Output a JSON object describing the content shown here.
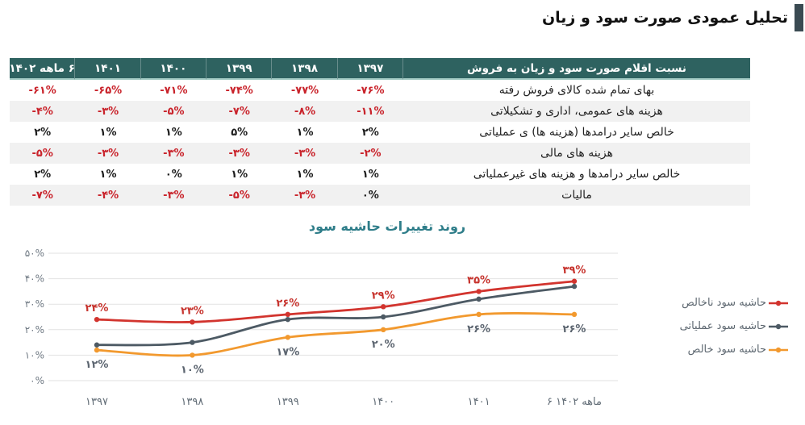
{
  "page": {
    "title": "تحلیل عمودی صورت سود و زیان"
  },
  "table": {
    "items_header": "نسبت اقلام صورت سود و زیان به فروش",
    "year_columns": [
      "۱۳۹۷",
      "۱۳۹۸",
      "۱۳۹۹",
      "۱۴۰۰",
      "۱۴۰۱",
      "۶ ماهه ۱۴۰۲"
    ],
    "rows": [
      {
        "label": "بهای تمام شده کالای فروش رفته",
        "values": [
          "-۷۶%",
          "-۷۷%",
          "-۷۴%",
          "-۷۱%",
          "-۶۵%",
          "-۶۱%"
        ]
      },
      {
        "label": "هزینه های عمومی، اداری و تشکیلاتی",
        "values": [
          "-۱۱%",
          "-۸%",
          "-۷%",
          "-۵%",
          "-۳%",
          "-۴%"
        ]
      },
      {
        "label": "خالص سایر درامدها (هزینه ها) ی عملیاتی",
        "values": [
          "۲%",
          "۱%",
          "۵%",
          "۱%",
          "۱%",
          "۲%"
        ]
      },
      {
        "label": "هزینه های مالی",
        "values": [
          "-۲%",
          "-۳%",
          "-۳%",
          "-۳%",
          "-۳%",
          "-۵%"
        ]
      },
      {
        "label": "خالص سایر درامدها و هزینه های غیرعملیاتی",
        "values": [
          "۱%",
          "۱%",
          "۱%",
          "۰%",
          "۱%",
          "۲%"
        ]
      },
      {
        "label": "مالیات",
        "values": [
          "۰%",
          "-۳%",
          "-۵%",
          "-۳%",
          "-۴%",
          "-۷%"
        ]
      }
    ]
  },
  "chart_data": {
    "type": "line",
    "title": "روند تغییرات حاشیه سود",
    "categories": [
      "۱۳۹۷",
      "۱۳۹۸",
      "۱۳۹۹",
      "۱۴۰۰",
      "۱۴۰۱",
      "۶ ماهه ۱۴۰۲"
    ],
    "series": [
      {
        "name": "حاشیه سود ناخالص",
        "values": [
          24,
          23,
          26,
          29,
          35,
          39
        ],
        "color": "#d2342e",
        "show_labels": true,
        "label_position": "above",
        "label_color": "#c7342e"
      },
      {
        "name": "حاشیه سود عملیاتی",
        "values": [
          14,
          15,
          24,
          25,
          32,
          37
        ],
        "color": "#4d5a64",
        "show_labels": false,
        "label_position": "none",
        "label_color": "#4d5a64"
      },
      {
        "name": "حاشیه سود خالص",
        "values": [
          12,
          10,
          17,
          20,
          26,
          26
        ],
        "color": "#f2992e",
        "show_labels": true,
        "label_position": "below",
        "label_color": "#5c6570"
      }
    ],
    "ylim": [
      0,
      50
    ],
    "ytick_step": 10,
    "ytick_labels": [
      "۰%",
      "۱۰%",
      "۲۰%",
      "۳۰%",
      "۴۰%",
      "۵۰%"
    ],
    "grid": true,
    "legend_position": "right",
    "xlabel": "",
    "ylabel": ""
  },
  "colors": {
    "header_bg": "#2e6260",
    "header_text": "#ffffff",
    "header_underline": "#a3cbc4",
    "row_alt_bg": "#f1f1f1",
    "negative_value": "#c9232b",
    "positive_value": "#1c1c1c",
    "title_accent": "#3a4a52",
    "chart_title": "#2e7d89",
    "grid_line": "#e2e2e2",
    "axis_label": "#707a84",
    "x_axis_label": "#5f6a74"
  }
}
